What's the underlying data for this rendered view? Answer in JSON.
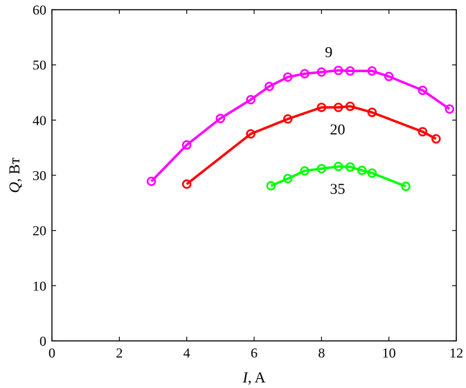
{
  "chart_data": {
    "type": "line",
    "title": "",
    "xlabel": {
      "var": "I",
      "unit": ", A"
    },
    "ylabel": {
      "var": "Q",
      "unit": ", Вт"
    },
    "xlim": [
      0,
      12
    ],
    "ylim": [
      0,
      60
    ],
    "xticks": [
      0,
      2,
      4,
      6,
      8,
      10,
      12
    ],
    "yticks": [
      0,
      10,
      20,
      30,
      40,
      50,
      60
    ],
    "grid": false,
    "series": [
      {
        "name": "9",
        "color": "#ff00ff",
        "marker": "circle-open",
        "x": [
          2.95,
          4.0,
          5.0,
          5.9,
          6.45,
          7.0,
          7.5,
          8.0,
          8.5,
          8.85,
          9.5,
          10.0,
          11.0,
          11.8
        ],
        "y": [
          28.9,
          35.5,
          40.3,
          43.7,
          46.1,
          47.8,
          48.4,
          48.7,
          49.0,
          48.9,
          48.9,
          47.9,
          45.4,
          42.0
        ]
      },
      {
        "name": "20",
        "color": "#ff0000",
        "marker": "circle-open",
        "x": [
          4.0,
          5.9,
          7.0,
          8.0,
          8.5,
          8.85,
          9.5,
          11.0,
          11.4
        ],
        "y": [
          28.4,
          37.5,
          40.2,
          42.3,
          42.3,
          42.5,
          41.4,
          37.9,
          36.6
        ]
      },
      {
        "name": "35",
        "color": "#00ff00",
        "marker": "circle-open",
        "x": [
          6.5,
          7.0,
          7.5,
          8.0,
          8.5,
          8.85,
          9.2,
          9.5,
          10.5
        ],
        "y": [
          28.1,
          29.4,
          30.8,
          31.2,
          31.6,
          31.5,
          30.9,
          30.4,
          28.0
        ]
      }
    ],
    "series_labels": [
      {
        "text": "9",
        "x": 8.1,
        "y": 51.4
      },
      {
        "text": "20",
        "x": 8.25,
        "y": 37.4
      },
      {
        "text": "35",
        "x": 8.25,
        "y": 26.6
      }
    ]
  }
}
